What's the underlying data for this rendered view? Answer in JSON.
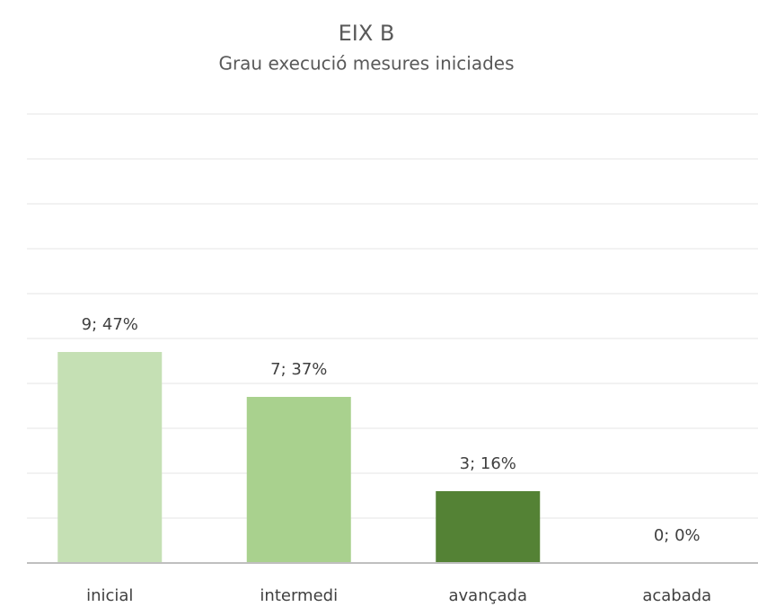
{
  "chart_data": {
    "type": "bar",
    "title": "EIX B",
    "subtitle": "Grau execució mesures iniciades",
    "categories": [
      "inicial",
      "intermedi",
      "avançada",
      "acabada"
    ],
    "values": [
      47,
      37,
      16,
      0
    ],
    "value_labels": [
      "9; 47%",
      "7; 37%",
      "3; 16%",
      "0; 0%"
    ],
    "colors": [
      "#c5e0b4",
      "#a9d18e",
      "#548235",
      "#a9d18e"
    ],
    "ylim": [
      0,
      100
    ],
    "yticks": [
      0,
      10,
      20,
      30,
      40,
      50,
      60,
      70,
      80,
      90,
      100
    ],
    "ytick_labels": false,
    "grid": true
  }
}
